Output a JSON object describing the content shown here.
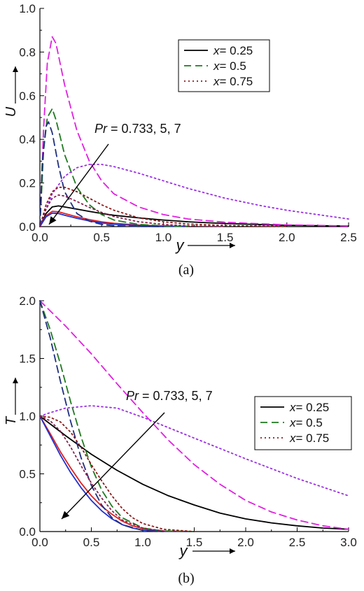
{
  "chart_data": [
    {
      "type": "line",
      "panel": "(a)",
      "caption": "(a)",
      "xlabel": "y",
      "ylabel": "U",
      "xlim": [
        0,
        2.5
      ],
      "ylim": [
        0,
        1.0
      ],
      "xticks": [
        "0.0",
        "0.5",
        "1.0",
        "1.5",
        "2.0",
        "2.5"
      ],
      "yticks": [
        "0.0",
        "0.2",
        "0.4",
        "0.6",
        "0.8",
        "1.0"
      ],
      "legend": {
        "placement": "top-right",
        "entries": [
          {
            "prefix": "x",
            "rest": "= 0.25",
            "style": "solid",
            "color": "#000000"
          },
          {
            "prefix": "x",
            "rest": "= 0.5",
            "style": "dashed",
            "color": "#1f7a1f"
          },
          {
            "prefix": "x",
            "rest": "= 0.75",
            "style": "dotted",
            "color": "#8b1a1a"
          }
        ]
      },
      "annotation": {
        "prefix": "Pr",
        "rest": " = 0.733, 5, 7"
      },
      "series": [
        {
          "x_position": 0.25,
          "Pr": 0.733,
          "style": "solid",
          "color": "#000000",
          "x": [
            0,
            0.05,
            0.1,
            0.15,
            0.2,
            0.3,
            0.4,
            0.5,
            0.6,
            0.8,
            1.0,
            1.2,
            1.5,
            2.0,
            2.5
          ],
          "y": [
            0,
            0.06,
            0.09,
            0.095,
            0.09,
            0.08,
            0.07,
            0.06,
            0.052,
            0.04,
            0.03,
            0.022,
            0.014,
            0.006,
            0.003
          ]
        },
        {
          "x_position": 0.25,
          "Pr": 5,
          "style": "solid",
          "color": "#e02020",
          "x": [
            0,
            0.05,
            0.1,
            0.15,
            0.2,
            0.3,
            0.4,
            0.5,
            0.6,
            0.8,
            1.0,
            1.2
          ],
          "y": [
            0,
            0.05,
            0.07,
            0.068,
            0.06,
            0.045,
            0.032,
            0.022,
            0.015,
            0.007,
            0.003,
            0.001
          ]
        },
        {
          "x_position": 0.25,
          "Pr": 7,
          "style": "solid",
          "color": "#2030d0",
          "x": [
            0,
            0.05,
            0.1,
            0.15,
            0.2,
            0.3,
            0.4,
            0.5,
            0.6,
            0.8,
            1.0,
            1.2
          ],
          "y": [
            0,
            0.045,
            0.062,
            0.06,
            0.052,
            0.038,
            0.026,
            0.017,
            0.011,
            0.005,
            0.002,
            0.001
          ]
        },
        {
          "x_position": 0.5,
          "Pr": 0.733,
          "style": "dashed",
          "color": "#e020e0",
          "x": [
            0,
            0.03,
            0.06,
            0.1,
            0.13,
            0.2,
            0.3,
            0.4,
            0.5,
            0.6,
            0.8,
            1.0,
            1.2,
            1.5,
            2.0,
            2.5
          ],
          "y": [
            0,
            0.45,
            0.75,
            0.87,
            0.84,
            0.65,
            0.44,
            0.3,
            0.21,
            0.15,
            0.09,
            0.055,
            0.035,
            0.02,
            0.008,
            0.003
          ]
        },
        {
          "x_position": 0.5,
          "Pr": 5,
          "style": "dashed",
          "color": "#1f7a1f",
          "x": [
            0,
            0.03,
            0.06,
            0.1,
            0.13,
            0.2,
            0.3,
            0.4,
            0.5,
            0.6,
            0.8,
            1.0,
            1.2
          ],
          "y": [
            0,
            0.35,
            0.5,
            0.54,
            0.49,
            0.33,
            0.18,
            0.1,
            0.055,
            0.03,
            0.01,
            0.004,
            0.001
          ]
        },
        {
          "x_position": 0.5,
          "Pr": 7,
          "style": "dashed",
          "color": "#1f2f80",
          "x": [
            0,
            0.02,
            0.05,
            0.07,
            0.1,
            0.15,
            0.2,
            0.3,
            0.4,
            0.5,
            0.6,
            0.8,
            1.0
          ],
          "y": [
            0,
            0.3,
            0.46,
            0.48,
            0.43,
            0.28,
            0.16,
            0.06,
            0.025,
            0.01,
            0.004,
            0.001,
            0
          ]
        },
        {
          "x_position": 0.75,
          "Pr": 0.733,
          "style": "dotted",
          "color": "#9a2ee6",
          "x": [
            0,
            0.05,
            0.1,
            0.2,
            0.3,
            0.4,
            0.5,
            0.6,
            0.8,
            1.0,
            1.2,
            1.5,
            1.8,
            2.0,
            2.5
          ],
          "y": [
            0,
            0.08,
            0.15,
            0.23,
            0.27,
            0.285,
            0.285,
            0.275,
            0.245,
            0.21,
            0.175,
            0.13,
            0.095,
            0.075,
            0.035
          ]
        },
        {
          "x_position": 0.75,
          "Pr": 5,
          "style": "dotted",
          "color": "#8b1a1a",
          "x": [
            0,
            0.05,
            0.1,
            0.15,
            0.2,
            0.3,
            0.4,
            0.5,
            0.6,
            0.8,
            1.0,
            1.2,
            1.5,
            2.0
          ],
          "y": [
            0,
            0.1,
            0.16,
            0.18,
            0.18,
            0.16,
            0.13,
            0.1,
            0.075,
            0.04,
            0.022,
            0.012,
            0.005,
            0.001
          ]
        },
        {
          "x_position": 0.75,
          "Pr": 7,
          "style": "dotted",
          "color": "#8a2050",
          "x": [
            0,
            0.05,
            0.1,
            0.15,
            0.2,
            0.3,
            0.4,
            0.5,
            0.6,
            0.8,
            1.0,
            1.2,
            1.5
          ],
          "y": [
            0,
            0.08,
            0.13,
            0.145,
            0.14,
            0.115,
            0.088,
            0.065,
            0.046,
            0.022,
            0.01,
            0.004,
            0.001
          ]
        }
      ]
    },
    {
      "type": "line",
      "panel": "(b)",
      "caption": "(b)",
      "xlabel": "y",
      "ylabel": "T",
      "xlim": [
        0,
        3.0
      ],
      "ylim": [
        0,
        2.0
      ],
      "xticks": [
        "0.0",
        "0.5",
        "1.0",
        "1.5",
        "2.0",
        "2.5",
        "3.0"
      ],
      "yticks": [
        "0.0",
        "0.5",
        "1.0",
        "1.5",
        "2.0"
      ],
      "legend": {
        "placement": "right",
        "entries": [
          {
            "prefix": "x",
            "rest": "= 0.25",
            "style": "solid",
            "color": "#000000"
          },
          {
            "prefix": "x",
            "rest": "= 0.5",
            "style": "dashed",
            "color": "#1f7a1f"
          },
          {
            "prefix": "x",
            "rest": "= 0.75",
            "style": "dotted",
            "color": "#8b1a1a"
          }
        ]
      },
      "annotation": {
        "prefix": "Pr",
        "rest": " = 0.733, 5, 7"
      },
      "series": [
        {
          "x_position": 0.25,
          "Pr": 0.733,
          "style": "solid",
          "color": "#000000",
          "x": [
            0,
            0.25,
            0.5,
            0.75,
            1.0,
            1.25,
            1.5,
            1.75,
            2.0,
            2.25,
            2.5,
            2.75,
            3.0
          ],
          "y": [
            1.0,
            0.83,
            0.67,
            0.53,
            0.41,
            0.31,
            0.23,
            0.16,
            0.11,
            0.075,
            0.05,
            0.03,
            0.02
          ]
        },
        {
          "x_position": 0.25,
          "Pr": 5,
          "style": "solid",
          "color": "#e02020",
          "x": [
            0,
            0.1,
            0.2,
            0.3,
            0.4,
            0.5,
            0.6,
            0.7,
            0.8,
            0.9,
            1.0,
            1.2,
            1.5
          ],
          "y": [
            1.0,
            0.85,
            0.69,
            0.55,
            0.42,
            0.31,
            0.22,
            0.15,
            0.09,
            0.05,
            0.025,
            0.005,
            0
          ]
        },
        {
          "x_position": 0.25,
          "Pr": 7,
          "style": "solid",
          "color": "#2030d0",
          "x": [
            0,
            0.1,
            0.2,
            0.3,
            0.4,
            0.5,
            0.6,
            0.7,
            0.8,
            0.9,
            1.0,
            1.2,
            1.5
          ],
          "y": [
            1.0,
            0.83,
            0.66,
            0.51,
            0.38,
            0.27,
            0.18,
            0.11,
            0.06,
            0.03,
            0.012,
            0.002,
            0
          ]
        },
        {
          "x_position": 0.5,
          "Pr": 0.733,
          "style": "dashed",
          "color": "#e020e0",
          "x": [
            0,
            0.25,
            0.5,
            0.75,
            1.0,
            1.25,
            1.5,
            1.75,
            2.0,
            2.25,
            2.5,
            2.75,
            3.0
          ],
          "y": [
            2.0,
            1.78,
            1.54,
            1.28,
            1.03,
            0.79,
            0.58,
            0.41,
            0.27,
            0.17,
            0.1,
            0.05,
            0.02
          ]
        },
        {
          "x_position": 0.5,
          "Pr": 5,
          "style": "dashed",
          "color": "#1f7a1f",
          "x": [
            0,
            0.1,
            0.2,
            0.3,
            0.4,
            0.5,
            0.6,
            0.7,
            0.8,
            1.0,
            1.2,
            1.5
          ],
          "y": [
            2.0,
            1.75,
            1.45,
            1.12,
            0.82,
            0.56,
            0.36,
            0.22,
            0.12,
            0.03,
            0.005,
            0
          ]
        },
        {
          "x_position": 0.5,
          "Pr": 7,
          "style": "dashed",
          "color": "#1f2f80",
          "x": [
            0,
            0.1,
            0.2,
            0.3,
            0.4,
            0.5,
            0.6,
            0.7,
            0.8,
            1.0,
            1.2
          ],
          "y": [
            2.0,
            1.68,
            1.3,
            0.95,
            0.64,
            0.4,
            0.23,
            0.12,
            0.06,
            0.01,
            0
          ]
        },
        {
          "x_position": 0.75,
          "Pr": 0.733,
          "style": "dotted",
          "color": "#9a2ee6",
          "x": [
            0,
            0.1,
            0.25,
            0.5,
            0.75,
            1.0,
            1.5,
            2.0,
            2.5,
            3.0
          ],
          "y": [
            1.0,
            1.03,
            1.07,
            1.09,
            1.07,
            0.99,
            0.81,
            0.63,
            0.46,
            0.31
          ]
        },
        {
          "x_position": 0.75,
          "Pr": 5,
          "style": "dotted",
          "color": "#8b1a1a",
          "x": [
            0,
            0.1,
            0.2,
            0.3,
            0.4,
            0.5,
            0.6,
            0.7,
            0.8,
            0.9,
            1.0,
            1.2,
            1.5
          ],
          "y": [
            1.0,
            0.99,
            0.95,
            0.86,
            0.73,
            0.58,
            0.44,
            0.31,
            0.2,
            0.12,
            0.07,
            0.02,
            0
          ]
        },
        {
          "x_position": 0.75,
          "Pr": 7,
          "style": "dotted",
          "color": "#8a2050",
          "x": [
            0,
            0.1,
            0.2,
            0.3,
            0.4,
            0.5,
            0.6,
            0.7,
            0.8,
            1.0,
            1.2
          ],
          "y": [
            1.0,
            0.96,
            0.87,
            0.73,
            0.57,
            0.42,
            0.29,
            0.18,
            0.1,
            0.03,
            0.005
          ]
        }
      ]
    }
  ]
}
